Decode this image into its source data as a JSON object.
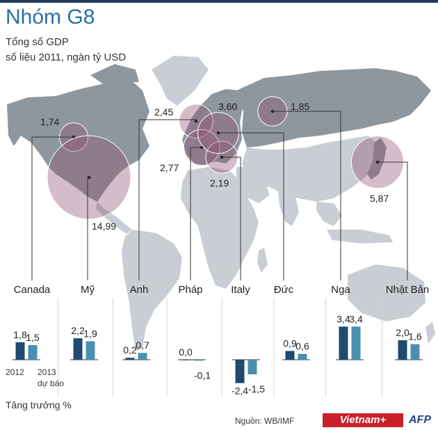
{
  "title": "Nhóm G8",
  "subtitle_1": "Tổng số GDP",
  "subtitle_2": "số liệu 2011, ngàn tỷ USD",
  "growth_label": "Tăng trưởng %",
  "source": "Nguồn: WB/IMF",
  "year_label_1": "2012",
  "year_label_2": "2013",
  "year_label_3": "dự báo",
  "logo_vietnamplus": "Vietnam+",
  "logo_afp": "AFP",
  "colors": {
    "bar_2012": "#1f4a6e",
    "bar_2013": "#4a8fb0",
    "bubble": "#8e5272",
    "land": "#c9ced4",
    "land_dark": "#8e969e",
    "title": "#2a6f9b"
  },
  "chart_data": [
    {
      "type": "bubble-map",
      "title": "Tổng số GDP",
      "subtitle": "số liệu 2011, ngàn tỷ USD",
      "points": [
        {
          "country": "Canada",
          "gdp_label": "1,74",
          "gdp": 1.74
        },
        {
          "country": "Mỹ",
          "gdp_label": "14,99",
          "gdp": 14.99
        },
        {
          "country": "Anh",
          "gdp_label": "2,45",
          "gdp": 2.45
        },
        {
          "country": "Pháp",
          "gdp_label": "2,77",
          "gdp": 2.77
        },
        {
          "country": "Italy",
          "gdp_label": "2,19",
          "gdp": 2.19
        },
        {
          "country": "Đức",
          "gdp_label": "3,60",
          "gdp": 3.6
        },
        {
          "country": "Nga",
          "gdp_label": "1,85",
          "gdp": 1.85
        },
        {
          "country": "Nhật Bản",
          "gdp_label": "5,87",
          "gdp": 5.87
        }
      ]
    },
    {
      "type": "bar",
      "title": "Tăng trưởng %",
      "categories": [
        "Canada",
        "Mỹ",
        "Anh",
        "Pháp",
        "Italy",
        "Đức",
        "Nga",
        "Nhật Bản"
      ],
      "series": [
        {
          "name": "2012",
          "values": [
            1.8,
            2.2,
            0.2,
            0.0,
            -2.4,
            0.9,
            3.4,
            2.0
          ],
          "labels": [
            "1,8",
            "2,2",
            "0,2",
            "0,0",
            "-2,4",
            "0,9",
            "3,4",
            "2,0"
          ]
        },
        {
          "name": "2013 dự báo",
          "values": [
            1.5,
            1.9,
            0.7,
            -0.1,
            -1.5,
            0.6,
            3.4,
            1.6
          ],
          "labels": [
            "1,5",
            "1,9",
            "0,7",
            "-0,1",
            "-1,5",
            "0,6",
            "3,4",
            "1,6"
          ]
        }
      ]
    }
  ]
}
